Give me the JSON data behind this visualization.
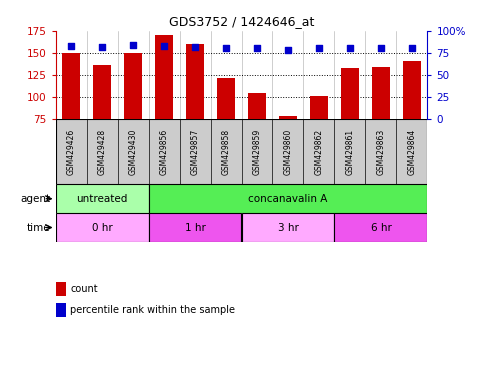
{
  "title": "GDS3752 / 1424646_at",
  "samples": [
    "GSM429426",
    "GSM429428",
    "GSM429430",
    "GSM429856",
    "GSM429857",
    "GSM429858",
    "GSM429859",
    "GSM429860",
    "GSM429862",
    "GSM429861",
    "GSM429863",
    "GSM429864"
  ],
  "counts": [
    150,
    136,
    150,
    170,
    160,
    121,
    105,
    79,
    101,
    133,
    134,
    141
  ],
  "percentile_ranks": [
    83,
    82,
    84,
    83,
    82,
    81,
    81,
    78,
    81,
    81,
    80,
    81
  ],
  "bar_color": "#cc0000",
  "dot_color": "#0000cc",
  "ylim_left": [
    75,
    175
  ],
  "ylim_right": [
    0,
    100
  ],
  "yticks_left": [
    75,
    100,
    125,
    150,
    175
  ],
  "yticks_right": [
    0,
    25,
    50,
    75,
    100
  ],
  "ytick_right_labels": [
    "0",
    "25",
    "50",
    "75",
    "100%"
  ],
  "grid_lines": [
    100,
    125,
    150
  ],
  "agent_groups": [
    {
      "label": "untreated",
      "start": 0,
      "end": 3,
      "color": "#aaffaa"
    },
    {
      "label": "concanavalin A",
      "start": 3,
      "end": 12,
      "color": "#55ee55"
    }
  ],
  "time_groups": [
    {
      "label": "0 hr",
      "start": 0,
      "end": 3,
      "color": "#ffaaff"
    },
    {
      "label": "1 hr",
      "start": 3,
      "end": 6,
      "color": "#ee55ee"
    },
    {
      "label": "3 hr",
      "start": 6,
      "end": 9,
      "color": "#ffaaff"
    },
    {
      "label": "6 hr",
      "start": 9,
      "end": 12,
      "color": "#ee55ee"
    }
  ],
  "legend_items": [
    {
      "color": "#cc0000",
      "label": "count"
    },
    {
      "color": "#0000cc",
      "label": "percentile rank within the sample"
    }
  ],
  "label_color_left": "#cc0000",
  "label_color_right": "#0000cc",
  "sample_box_color": "#cccccc",
  "panel_bg": "#ffffff"
}
